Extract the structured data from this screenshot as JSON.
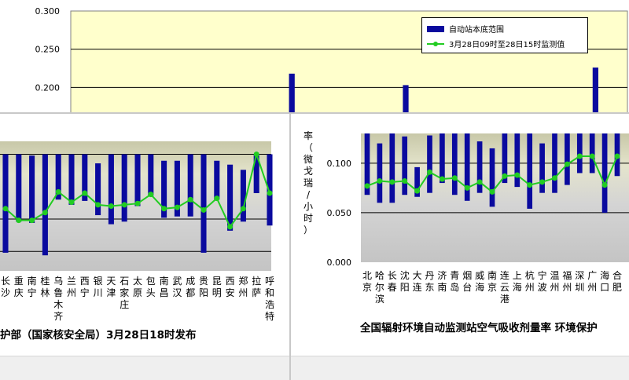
{
  "chart_data": [
    {
      "type": "bar",
      "panel": "background",
      "ylim": [
        0.15,
        0.3
      ],
      "yticks": [
        "0.300",
        "0.250",
        "0.200"
      ],
      "legend": {
        "placement": "top-right",
        "range_label": "自动站本底范围",
        "value_label": "3月28日09时至28日15时监测值"
      },
      "visible_bar_tops": [
        {
          "slot": 17,
          "value": 0.218
        },
        {
          "slot": 26,
          "value": 0.203
        },
        {
          "slot": 41,
          "value": 0.226
        }
      ]
    },
    {
      "type": "bar",
      "panel": "left",
      "categories": [
        "长沙",
        "重庆",
        "南宁",
        "桂林",
        "乌鲁木齐",
        "兰州",
        "西宁",
        "银川",
        "天津",
        "石家庄",
        "太原",
        "包头",
        "南昌",
        "武汉",
        "成都",
        "贵阳",
        "昆明",
        "西安",
        "郑州",
        "拉萨",
        "呼和浩特"
      ],
      "ylim": [
        0.06,
        0.16
      ],
      "series": [
        {
          "type": "range",
          "low": [
            0.074,
            0.098,
            0.097,
            0.072,
            0.115,
            0.111,
            0.114,
            0.103,
            0.096,
            0.098,
            0.11,
            0.118,
            0.101,
            0.102,
            0.102,
            0.074,
            0.115,
            0.091,
            0.098,
            0.12,
            0.095
          ],
          "high": [
            0.15,
            0.15,
            0.149,
            0.15,
            0.15,
            0.15,
            0.15,
            0.143,
            0.15,
            0.15,
            0.15,
            0.15,
            0.145,
            0.145,
            0.15,
            0.15,
            0.145,
            0.142,
            0.138,
            0.15,
            0.15
          ]
        },
        {
          "type": "line",
          "values": [
            0.108,
            0.099,
            0.099,
            0.105,
            0.121,
            0.113,
            0.12,
            0.111,
            0.11,
            0.111,
            0.112,
            0.119,
            0.108,
            0.109,
            0.115,
            0.107,
            0.116,
            0.094,
            0.108,
            0.15,
            0.12
          ]
        }
      ],
      "footer": "护部（国家核安全局）3月28日18时发布"
    },
    {
      "type": "bar",
      "panel": "right",
      "ylabel": "率（微戈瑞/小时）",
      "yticks": [
        "0.100",
        "0.050",
        "0.000"
      ],
      "ylim": [
        0,
        0.13
      ],
      "categories": [
        "北京",
        "哈尔滨",
        "长春",
        "沈阳",
        "大连",
        "丹东",
        "济南",
        "青岛",
        "烟台",
        "威海",
        "南京",
        "连云港",
        "上海",
        "杭州",
        "宁波",
        "温州",
        "福州",
        "深圳",
        "广州",
        "海口",
        "合肥"
      ],
      "series": [
        {
          "type": "range",
          "low": [
            0.068,
            0.06,
            0.06,
            0.068,
            0.066,
            0.07,
            0.08,
            0.068,
            0.062,
            0.07,
            0.056,
            0.08,
            0.076,
            0.054,
            0.07,
            0.07,
            0.078,
            0.09,
            0.09,
            0.05,
            0.087
          ],
          "high": [
            0.135,
            0.12,
            0.132,
            0.127,
            0.096,
            0.128,
            0.135,
            0.135,
            0.135,
            0.122,
            0.115,
            0.135,
            0.132,
            0.135,
            0.12,
            0.135,
            0.135,
            0.135,
            0.135,
            0.135,
            0.135
          ]
        },
        {
          "type": "line",
          "values": [
            0.077,
            0.082,
            0.081,
            0.082,
            0.072,
            0.091,
            0.084,
            0.085,
            0.075,
            0.081,
            0.071,
            0.087,
            0.088,
            0.078,
            0.081,
            0.085,
            0.099,
            0.107,
            0.107,
            0.078,
            0.107
          ]
        }
      ],
      "footer": "全国辐射环境自动监测站空气吸收剂量率   环境保护"
    }
  ]
}
